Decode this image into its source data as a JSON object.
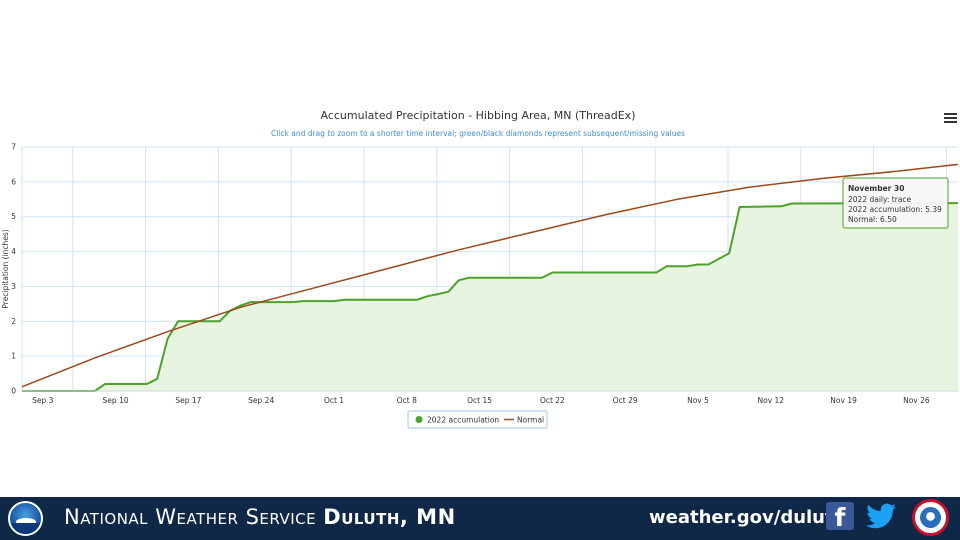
{
  "chart_data": {
    "type": "line",
    "title": "Accumulated Precipitation - Hibbing Area, MN (ThreadEx)",
    "subtitle": "Click and drag to zoom to a shorter time interval; green/black diamonds represent subsequent/missing values",
    "ylabel": "Precipitation (inches)",
    "xlabel": "",
    "ylim": [
      0,
      7
    ],
    "y_ticks": [
      "0",
      "1",
      "2",
      "3",
      "4",
      "5",
      "6",
      "7"
    ],
    "x_tick_labels": [
      "Sep 3",
      "Sep 10",
      "Sep 17",
      "Sep 24",
      "Oct 1",
      "Oct 8",
      "Oct 15",
      "Oct 22",
      "Oct 29",
      "Nov 5",
      "Nov 12",
      "Nov 19",
      "Nov 26"
    ],
    "x_tick_dates": [
      "2022-09-03",
      "2022-09-10",
      "2022-09-17",
      "2022-09-24",
      "2022-10-01",
      "2022-10-08",
      "2022-10-15",
      "2022-10-22",
      "2022-10-29",
      "2022-11-05",
      "2022-11-12",
      "2022-11-19",
      "2022-11-26"
    ],
    "x_range": [
      "2022-09-01",
      "2022-11-30"
    ],
    "grid": true,
    "legend_position": "bottom-center",
    "series": [
      {
        "name": "2022 accumulation",
        "type": "area",
        "color": "#4ca22a",
        "fill": "#e6f4e0",
        "points": [
          [
            "2022-09-01",
            0
          ],
          [
            "2022-09-08",
            0
          ],
          [
            "2022-09-09",
            0.2
          ],
          [
            "2022-09-13",
            0.2
          ],
          [
            "2022-09-14",
            0.35
          ],
          [
            "2022-09-15",
            1.5
          ],
          [
            "2022-09-16",
            2.0
          ],
          [
            "2022-09-20",
            2.0
          ],
          [
            "2022-09-21",
            2.3
          ],
          [
            "2022-09-22",
            2.45
          ],
          [
            "2022-09-23",
            2.55
          ],
          [
            "2022-09-27",
            2.55
          ],
          [
            "2022-09-28",
            2.58
          ],
          [
            "2022-10-01",
            2.58
          ],
          [
            "2022-10-02",
            2.62
          ],
          [
            "2022-10-09",
            2.62
          ],
          [
            "2022-10-10",
            2.72
          ],
          [
            "2022-10-11",
            2.78
          ],
          [
            "2022-10-12",
            2.85
          ],
          [
            "2022-10-13",
            3.18
          ],
          [
            "2022-10-14",
            3.25
          ],
          [
            "2022-10-21",
            3.25
          ],
          [
            "2022-10-22",
            3.4
          ],
          [
            "2022-11-01",
            3.4
          ],
          [
            "2022-11-02",
            3.58
          ],
          [
            "2022-11-04",
            3.58
          ],
          [
            "2022-11-05",
            3.63
          ],
          [
            "2022-11-06",
            3.63
          ],
          [
            "2022-11-08",
            3.95
          ],
          [
            "2022-11-09",
            5.28
          ],
          [
            "2022-11-13",
            5.3
          ],
          [
            "2022-11-14",
            5.38
          ],
          [
            "2022-11-30",
            5.39
          ]
        ]
      },
      {
        "name": "Normal",
        "type": "line",
        "color": "#9b4a1c",
        "points": [
          [
            "2022-09-01",
            0.12
          ],
          [
            "2022-09-08",
            0.95
          ],
          [
            "2022-09-15",
            1.7
          ],
          [
            "2022-09-22",
            2.4
          ],
          [
            "2022-09-29",
            2.95
          ],
          [
            "2022-10-06",
            3.5
          ],
          [
            "2022-10-13",
            4.05
          ],
          [
            "2022-10-20",
            4.55
          ],
          [
            "2022-10-27",
            5.05
          ],
          [
            "2022-11-03",
            5.5
          ],
          [
            "2022-11-10",
            5.85
          ],
          [
            "2022-11-17",
            6.1
          ],
          [
            "2022-11-24",
            6.3
          ],
          [
            "2022-11-30",
            6.5
          ]
        ]
      }
    ],
    "tooltip": {
      "title": "November 30",
      "lines": [
        "2022 daily: trace",
        "2022 accumulation: 5.39",
        "Normal: 6.50"
      ]
    }
  },
  "footer": {
    "org_name_plain": "National Weather Service ",
    "org_name_bold": "Duluth, MN",
    "url": "weather.gov/duluth",
    "facebook_glyph": "f",
    "logos": [
      "noaa-logo",
      "facebook-icon",
      "twitter-icon",
      "nws-logo"
    ],
    "background": "#0f2848"
  }
}
